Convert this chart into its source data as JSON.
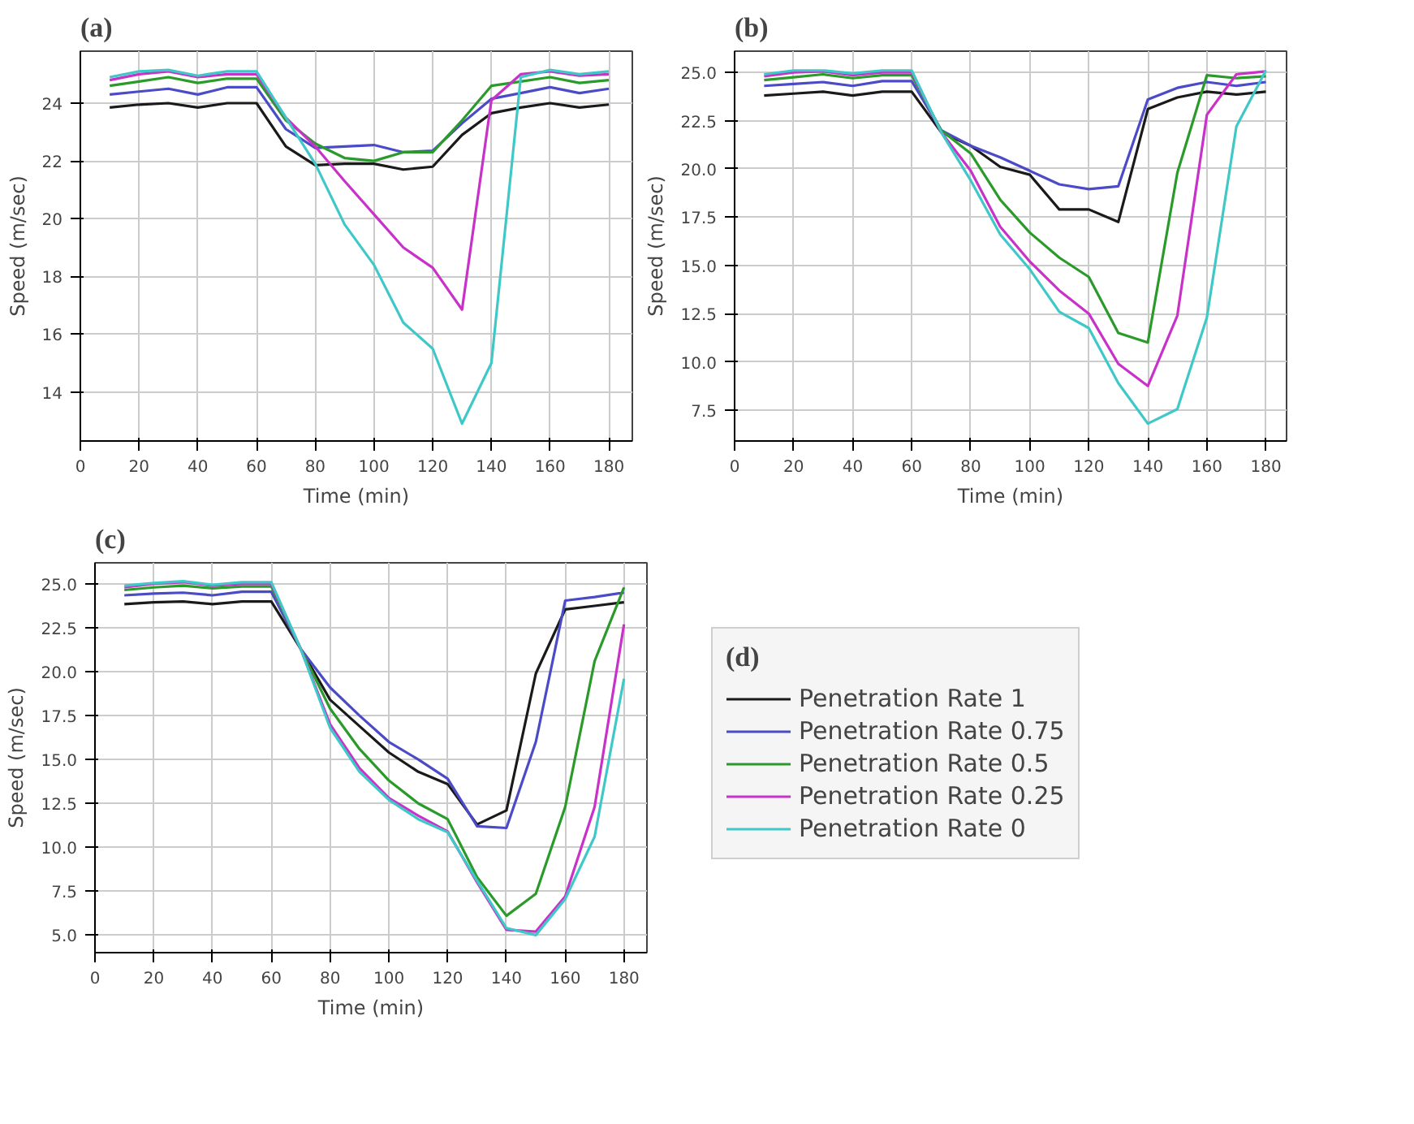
{
  "chart_data": [
    {
      "type": "line",
      "title": "(a)",
      "xlabel": "Time (min)",
      "ylabel": "Speed (m/sec)",
      "x": [
        10,
        20,
        30,
        40,
        50,
        60,
        70,
        80,
        90,
        100,
        110,
        120,
        130,
        140,
        150,
        160,
        170,
        180
      ],
      "xlim": [
        0,
        188
      ],
      "xticks": [
        0,
        20,
        40,
        60,
        80,
        100,
        120,
        140,
        160,
        180
      ],
      "ylim": [
        12.3,
        25.8
      ],
      "yticks": [
        14,
        16,
        18,
        20,
        22,
        24
      ],
      "grid": true,
      "legend": false,
      "series": [
        {
          "color": "#1a1a1a",
          "values": [
            23.85,
            23.95,
            24.0,
            23.85,
            24.0,
            24.0,
            22.5,
            21.85,
            21.9,
            21.9,
            21.7,
            21.8,
            22.9,
            23.65,
            23.85,
            24.0,
            23.85,
            23.95
          ]
        },
        {
          "color": "#4b4bc8",
          "values": [
            24.3,
            24.4,
            24.5,
            24.3,
            24.55,
            24.55,
            23.1,
            22.45,
            22.5,
            22.55,
            22.3,
            22.35,
            23.3,
            24.15,
            24.35,
            24.55,
            24.35,
            24.5
          ]
        },
        {
          "color": "#2a9a2a",
          "values": [
            24.6,
            24.75,
            24.9,
            24.7,
            24.85,
            24.85,
            23.4,
            22.6,
            22.1,
            22.0,
            22.3,
            22.3,
            23.4,
            24.6,
            24.75,
            24.9,
            24.7,
            24.8
          ]
        },
        {
          "color": "#c832c8",
          "values": [
            24.8,
            25.0,
            25.1,
            24.9,
            25.0,
            25.0,
            23.5,
            22.5,
            21.3,
            20.15,
            19.0,
            18.3,
            16.85,
            24.1,
            25.0,
            25.1,
            24.95,
            25.0
          ]
        },
        {
          "color": "#40c8c8",
          "values": [
            24.9,
            25.1,
            25.15,
            24.95,
            25.1,
            25.1,
            23.5,
            21.9,
            19.8,
            18.4,
            16.4,
            15.5,
            12.9,
            15.0,
            24.9,
            25.15,
            25.0,
            25.1
          ]
        }
      ]
    },
    {
      "type": "line",
      "title": "(b)",
      "xlabel": "Time (min)",
      "ylabel": "Speed (m/sec)",
      "x": [
        10,
        20,
        30,
        40,
        50,
        60,
        70,
        80,
        90,
        100,
        110,
        120,
        130,
        140,
        150,
        160,
        170,
        180
      ],
      "xlim": [
        0,
        187
      ],
      "xticks": [
        0,
        20,
        40,
        60,
        80,
        100,
        120,
        140,
        160,
        180
      ],
      "ylim": [
        5.9,
        26.1
      ],
      "yticks": [
        {
          "value": 7.5,
          "label": "7.5"
        },
        {
          "value": 10,
          "label": "10.0"
        },
        {
          "value": 12.5,
          "label": "12.5"
        },
        {
          "value": 15,
          "label": "15.0"
        },
        {
          "value": 17.5,
          "label": "17.5"
        },
        {
          "value": 20,
          "label": "20.0"
        },
        {
          "value": 22.5,
          "label": "22.5"
        },
        {
          "value": 25,
          "label": "25.0"
        }
      ],
      "grid": true,
      "legend": false,
      "series": [
        {
          "color": "#1a1a1a",
          "values": [
            23.8,
            23.9,
            24.0,
            23.8,
            24.0,
            24.0,
            21.9,
            21.2,
            20.1,
            19.7,
            17.9,
            17.9,
            17.25,
            23.1,
            23.7,
            24.0,
            23.85,
            24.0
          ]
        },
        {
          "color": "#4b4bc8",
          "values": [
            24.3,
            24.4,
            24.5,
            24.3,
            24.55,
            24.55,
            22.0,
            21.2,
            20.6,
            19.9,
            19.2,
            18.95,
            19.1,
            23.6,
            24.2,
            24.5,
            24.3,
            24.5
          ]
        },
        {
          "color": "#2a9a2a",
          "values": [
            24.6,
            24.75,
            24.9,
            24.7,
            24.85,
            24.85,
            22.0,
            20.8,
            18.4,
            16.7,
            15.4,
            14.4,
            11.5,
            11.0,
            19.8,
            24.85,
            24.7,
            24.8
          ]
        },
        {
          "color": "#c832c8",
          "values": [
            24.8,
            25.0,
            25.05,
            24.85,
            25.0,
            25.0,
            21.9,
            19.9,
            17.0,
            15.2,
            13.7,
            12.5,
            9.9,
            8.75,
            12.4,
            22.8,
            24.9,
            25.05
          ]
        },
        {
          "color": "#40c8c8",
          "values": [
            24.9,
            25.1,
            25.1,
            24.95,
            25.1,
            25.1,
            21.9,
            19.4,
            16.6,
            14.8,
            12.6,
            11.75,
            8.9,
            6.8,
            7.55,
            12.3,
            22.2,
            25.1
          ]
        }
      ]
    },
    {
      "type": "line",
      "title": "(c)",
      "xlabel": "Time (min)",
      "ylabel": "Speed (m/sec)",
      "legend_title": "(d)",
      "x": [
        10,
        20,
        30,
        40,
        50,
        60,
        70,
        80,
        90,
        100,
        110,
        120,
        130,
        140,
        150,
        160,
        170,
        180
      ],
      "xlim": [
        0,
        187.8
      ],
      "xticks": [
        0,
        20,
        40,
        60,
        80,
        100,
        120,
        140,
        160,
        180
      ],
      "ylim": [
        4.0,
        26.2
      ],
      "yticks": [
        {
          "value": 5,
          "label": "5.0"
        },
        {
          "value": 7.5,
          "label": "7.5"
        },
        {
          "value": 10,
          "label": "10.0"
        },
        {
          "value": 12.5,
          "label": "12.5"
        },
        {
          "value": 15,
          "label": "15.0"
        },
        {
          "value": 17.5,
          "label": "17.5"
        },
        {
          "value": 20,
          "label": "20.0"
        },
        {
          "value": 22.5,
          "label": "22.5"
        },
        {
          "value": 25,
          "label": "25.0"
        }
      ],
      "grid": true,
      "legend": "right",
      "series": [
        {
          "name": "Penetration Rate 1",
          "color": "#1a1a1a",
          "values": [
            23.85,
            23.95,
            24.0,
            23.85,
            24.0,
            24.0,
            21.3,
            18.4,
            16.9,
            15.4,
            14.3,
            13.6,
            11.3,
            12.1,
            19.9,
            23.55,
            23.75,
            23.95
          ]
        },
        {
          "name": "Penetration Rate 0.75",
          "color": "#4b4bc8",
          "values": [
            24.35,
            24.45,
            24.5,
            24.35,
            24.55,
            24.55,
            21.3,
            19.1,
            17.5,
            16.0,
            15.0,
            13.9,
            11.2,
            11.1,
            16.0,
            24.05,
            24.25,
            24.5
          ]
        },
        {
          "name": "Penetration Rate 0.5",
          "color": "#2a9a2a",
          "values": [
            24.65,
            24.8,
            24.9,
            24.75,
            24.85,
            24.85,
            21.3,
            17.9,
            15.6,
            13.8,
            12.5,
            11.6,
            8.3,
            6.1,
            7.35,
            12.3,
            20.6,
            24.8
          ]
        },
        {
          "name": "Penetration Rate 0.25",
          "color": "#c832c8",
          "values": [
            24.8,
            25.0,
            25.1,
            24.9,
            25.0,
            25.0,
            21.3,
            17.0,
            14.5,
            12.8,
            11.8,
            10.9,
            8.0,
            5.3,
            5.2,
            7.2,
            12.3,
            22.7
          ]
        },
        {
          "name": "Penetration Rate 0",
          "color": "#40c8c8",
          "values": [
            24.9,
            25.05,
            25.15,
            24.95,
            25.1,
            25.1,
            21.3,
            16.8,
            14.3,
            12.7,
            11.6,
            10.85,
            8.1,
            5.4,
            5.0,
            7.05,
            10.6,
            19.6
          ]
        }
      ]
    }
  ]
}
